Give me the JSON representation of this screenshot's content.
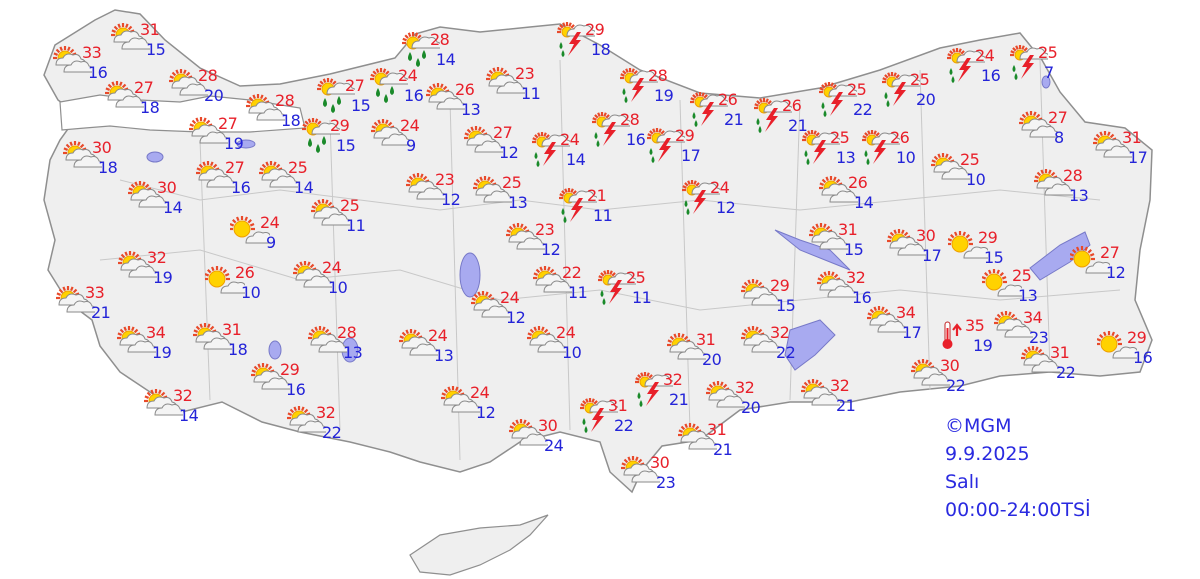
{
  "colors": {
    "high": "#e8202a",
    "low": "#2424d8",
    "land": "#efefef",
    "border": "#999999",
    "water": "#a8aaf0"
  },
  "info": {
    "copyright": "©MGM",
    "date": "9.9.2025",
    "day": "Salı",
    "period": "00:00-24:00TSİ"
  },
  "stations": [
    {
      "high": "33",
      "low": "16",
      "icon": "partly-cloudy"
    },
    {
      "high": "31",
      "low": "15",
      "icon": "partly-cloudy"
    },
    {
      "high": "27",
      "low": "18",
      "icon": "partly-cloudy"
    },
    {
      "high": "28",
      "low": "20",
      "icon": "partly-cloudy"
    },
    {
      "high": "30",
      "low": "18",
      "icon": "partly-cloudy"
    },
    {
      "high": "27",
      "low": "19",
      "icon": "partly-cloudy"
    },
    {
      "high": "28",
      "low": "18",
      "icon": "partly-cloudy"
    },
    {
      "high": "27",
      "low": "15",
      "icon": "rain-showers"
    },
    {
      "high": "24",
      "low": "16",
      "icon": "rain-showers"
    },
    {
      "high": "28",
      "low": "14",
      "icon": "rain-showers"
    },
    {
      "high": "29",
      "low": "15",
      "icon": "rain-showers"
    },
    {
      "high": "24",
      "low": "9",
      "icon": "partly-cloudy"
    },
    {
      "high": "26",
      "low": "13",
      "icon": "partly-cloudy"
    },
    {
      "high": "23",
      "low": "11",
      "icon": "partly-cloudy"
    },
    {
      "high": "27",
      "low": "12",
      "icon": "partly-cloudy"
    },
    {
      "high": "27",
      "low": "16",
      "icon": "partly-cloudy"
    },
    {
      "high": "25",
      "low": "14",
      "icon": "partly-cloudy"
    },
    {
      "high": "30",
      "low": "14",
      "icon": "partly-cloudy"
    },
    {
      "high": "25",
      "low": "11",
      "icon": "partly-cloudy"
    },
    {
      "high": "24",
      "low": "9",
      "icon": "sunny"
    },
    {
      "high": "23",
      "low": "12",
      "icon": "partly-cloudy"
    },
    {
      "high": "25",
      "low": "13",
      "icon": "partly-cloudy"
    },
    {
      "high": "29",
      "low": "18",
      "icon": "thunderstorm"
    },
    {
      "high": "28",
      "low": "19",
      "icon": "thunderstorm"
    },
    {
      "high": "24",
      "low": "14",
      "icon": "thunderstorm"
    },
    {
      "high": "28",
      "low": "16",
      "icon": "thunderstorm"
    },
    {
      "high": "29",
      "low": "17",
      "icon": "thunderstorm"
    },
    {
      "high": "26",
      "low": "21",
      "icon": "thunderstorm"
    },
    {
      "high": "26",
      "low": "21",
      "icon": "thunderstorm"
    },
    {
      "high": "25",
      "low": "22",
      "icon": "thunderstorm"
    },
    {
      "high": "25",
      "low": "20",
      "icon": "thunderstorm"
    },
    {
      "high": "24",
      "low": "16",
      "icon": "thunderstorm"
    },
    {
      "high": "25",
      "low": "7",
      "icon": "thunderstorm"
    },
    {
      "high": "25",
      "low": "13",
      "icon": "thunderstorm"
    },
    {
      "high": "26",
      "low": "10",
      "icon": "thunderstorm"
    },
    {
      "high": "21",
      "low": "11",
      "icon": "thunderstorm"
    },
    {
      "high": "24",
      "low": "12",
      "icon": "thunderstorm"
    },
    {
      "high": "26",
      "low": "14",
      "icon": "partly-cloudy"
    },
    {
      "high": "25",
      "low": "10",
      "icon": "partly-cloudy"
    },
    {
      "high": "27",
      "low": "8",
      "icon": "partly-cloudy"
    },
    {
      "high": "31",
      "low": "17",
      "icon": "partly-cloudy"
    },
    {
      "high": "28",
      "low": "13",
      "icon": "partly-cloudy"
    },
    {
      "high": "23",
      "low": "12",
      "icon": "partly-cloudy"
    },
    {
      "high": "31",
      "low": "15",
      "icon": "partly-cloudy"
    },
    {
      "high": "30",
      "low": "17",
      "icon": "partly-cloudy"
    },
    {
      "high": "29",
      "low": "15",
      "icon": "sunny"
    },
    {
      "high": "27",
      "low": "12",
      "icon": "sunny"
    },
    {
      "high": "25",
      "low": "13",
      "icon": "sunny"
    },
    {
      "high": "32",
      "low": "19",
      "icon": "partly-cloudy"
    },
    {
      "high": "26",
      "low": "10",
      "icon": "sunny"
    },
    {
      "high": "24",
      "low": "10",
      "icon": "partly-cloudy"
    },
    {
      "high": "22",
      "low": "11",
      "icon": "partly-cloudy"
    },
    {
      "high": "25",
      "low": "11",
      "icon": "thunderstorm"
    },
    {
      "high": "33",
      "low": "21",
      "icon": "partly-cloudy"
    },
    {
      "high": "24",
      "low": "12",
      "icon": "partly-cloudy"
    },
    {
      "high": "29",
      "low": "15",
      "icon": "partly-cloudy"
    },
    {
      "high": "32",
      "low": "16",
      "icon": "partly-cloudy"
    },
    {
      "high": "34",
      "low": "19",
      "icon": "partly-cloudy"
    },
    {
      "high": "31",
      "low": "18",
      "icon": "partly-cloudy"
    },
    {
      "high": "28",
      "low": "13",
      "icon": "partly-cloudy"
    },
    {
      "high": "24",
      "low": "13",
      "icon": "partly-cloudy"
    },
    {
      "high": "24",
      "low": "10",
      "icon": "partly-cloudy"
    },
    {
      "high": "31",
      "low": "20",
      "icon": "partly-cloudy"
    },
    {
      "high": "32",
      "low": "22",
      "icon": "partly-cloudy"
    },
    {
      "high": "34",
      "low": "17",
      "icon": "partly-cloudy"
    },
    {
      "high": "35",
      "low": "19",
      "icon": "hot-thermometer"
    },
    {
      "high": "34",
      "low": "23",
      "icon": "partly-cloudy"
    },
    {
      "high": "29",
      "low": "16",
      "icon": "sunny"
    },
    {
      "high": "29",
      "low": "16",
      "icon": "partly-cloudy"
    },
    {
      "high": "32",
      "low": "14",
      "icon": "partly-cloudy"
    },
    {
      "high": "32",
      "low": "22",
      "icon": "partly-cloudy"
    },
    {
      "high": "24",
      "low": "12",
      "icon": "partly-cloudy"
    },
    {
      "high": "32",
      "low": "21",
      "icon": "thunderstorm"
    },
    {
      "high": "32",
      "low": "20",
      "icon": "partly-cloudy"
    },
    {
      "high": "32",
      "low": "21",
      "icon": "partly-cloudy"
    },
    {
      "high": "30",
      "low": "22",
      "icon": "partly-cloudy"
    },
    {
      "high": "31",
      "low": "22",
      "icon": "partly-cloudy"
    },
    {
      "high": "30",
      "low": "24",
      "icon": "partly-cloudy"
    },
    {
      "high": "31",
      "low": "22",
      "icon": "thunderstorm"
    },
    {
      "high": "31",
      "low": "21",
      "icon": "partly-cloudy"
    },
    {
      "high": "30",
      "low": "23",
      "icon": "partly-cloudy"
    }
  ]
}
